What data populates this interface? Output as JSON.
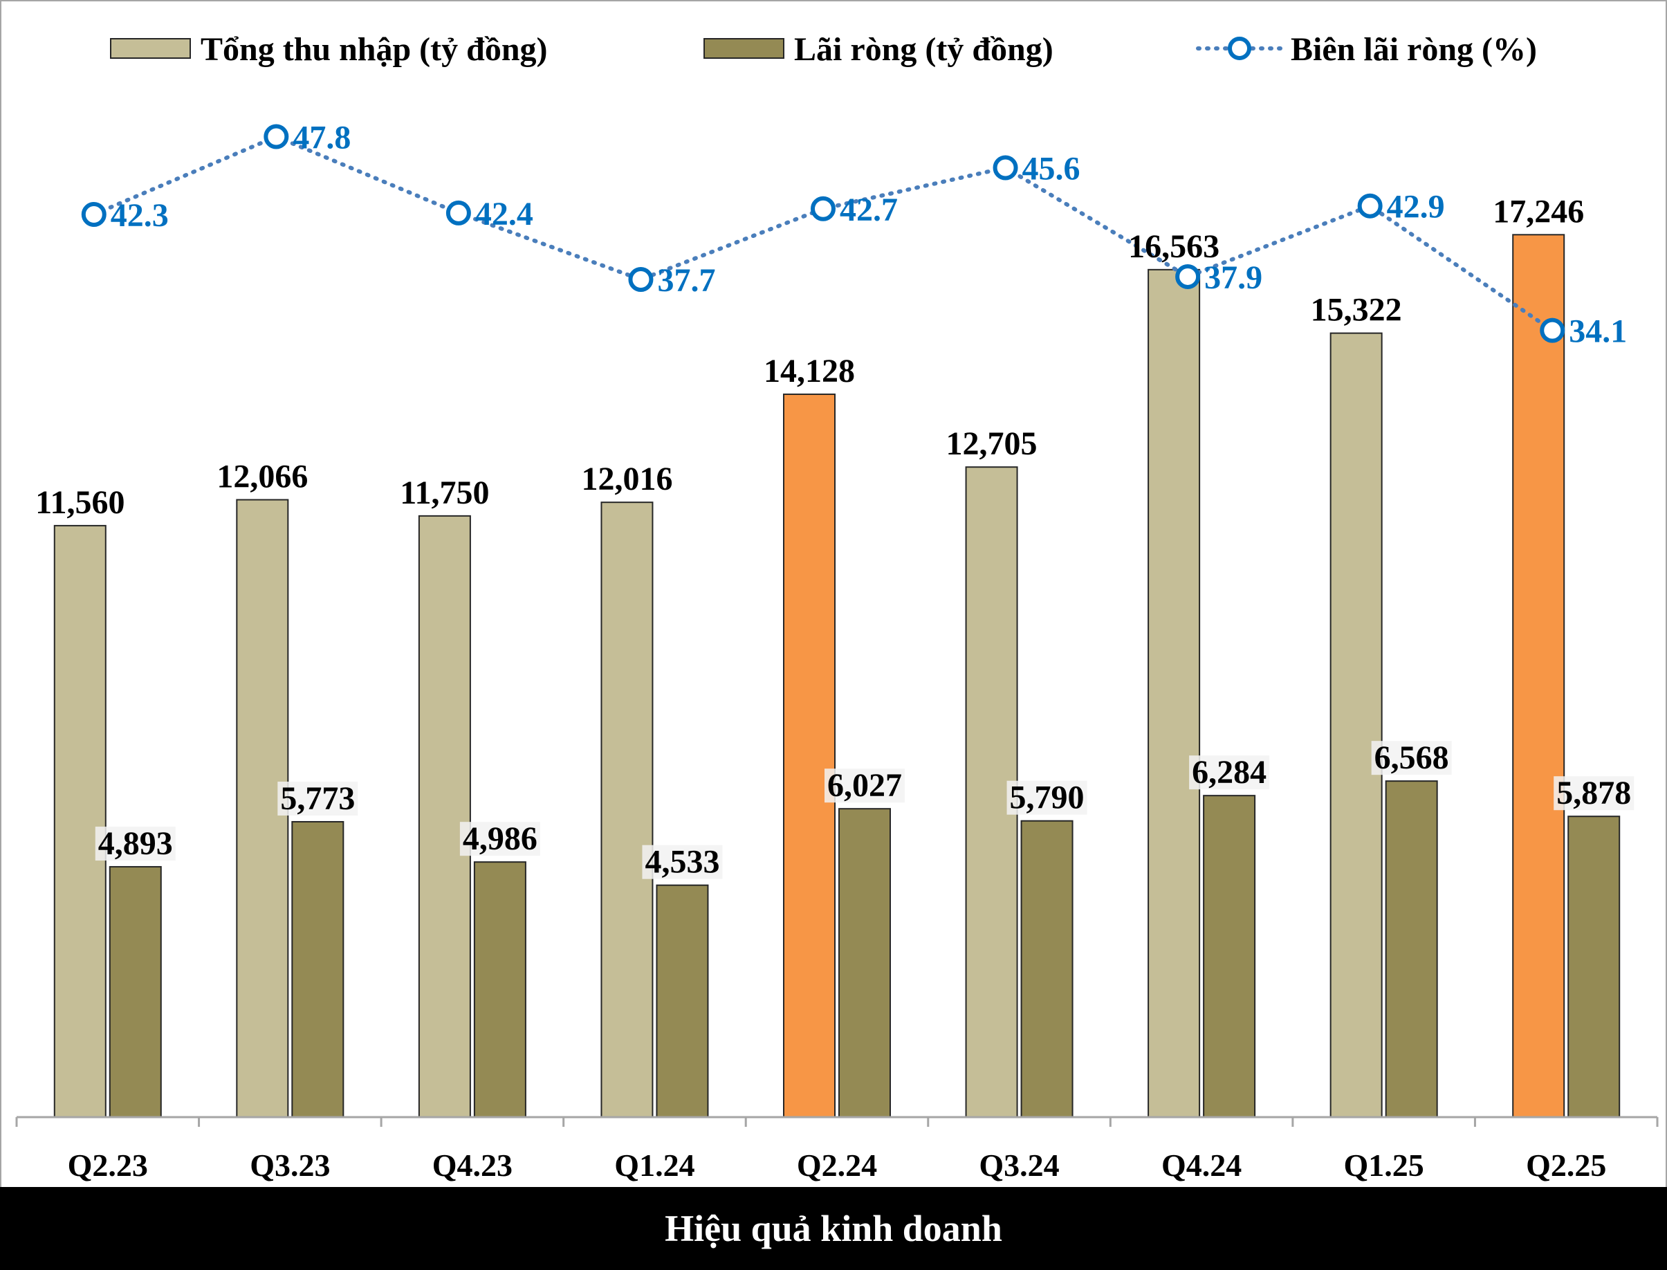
{
  "chart_data": {
    "type": "bar",
    "categories": [
      "Q2.23",
      "Q3.23",
      "Q4.23",
      "Q1.24",
      "Q2.24",
      "Q3.24",
      "Q4.24",
      "Q1.25",
      "Q2.25"
    ],
    "series": [
      {
        "name": "Tổng thu nhập (tỷ đồng)",
        "type": "bar",
        "axis": "left",
        "color": "#c5be97",
        "highlight_color": "#f79646",
        "highlight_categories": [
          "Q2.24",
          "Q2.25"
        ],
        "values": [
          11560,
          12066,
          11750,
          12016,
          14128,
          12705,
          16563,
          15322,
          17246
        ],
        "labels": [
          "11,560",
          "12,066",
          "11,750",
          "12,016",
          "14,128",
          "12,705",
          "16,563",
          "15,322",
          "17,246"
        ]
      },
      {
        "name": "Lãi ròng (tỷ đồng)",
        "type": "bar",
        "axis": "left",
        "color": "#948a54",
        "values": [
          4893,
          5773,
          4986,
          4533,
          6027,
          5790,
          6284,
          6568,
          5878
        ],
        "labels": [
          "4,893",
          "5,773",
          "4,986",
          "4,533",
          "6,027",
          "5,790",
          "6,284",
          "6,568",
          "5,878"
        ]
      },
      {
        "name": "Biên lãi ròng (%)",
        "type": "line",
        "style": "dotted",
        "marker": "hollow-circle",
        "axis": "right",
        "color": "#0070c0",
        "line_color": "#4a7ebb",
        "values": [
          42.3,
          47.8,
          42.4,
          37.7,
          42.7,
          45.6,
          37.9,
          42.9,
          34.1
        ],
        "labels": [
          "42.3",
          "47.8",
          "42.4",
          "37.7",
          "42.7",
          "45.6",
          "37.9",
          "42.9",
          "34.1"
        ]
      }
    ],
    "ylim_left": [
      0,
      20000
    ],
    "ylim_right": [
      0,
      70
    ],
    "grid": false,
    "legend_position": "top"
  },
  "footer": {
    "title": "Hiệu quả kinh doanh"
  }
}
